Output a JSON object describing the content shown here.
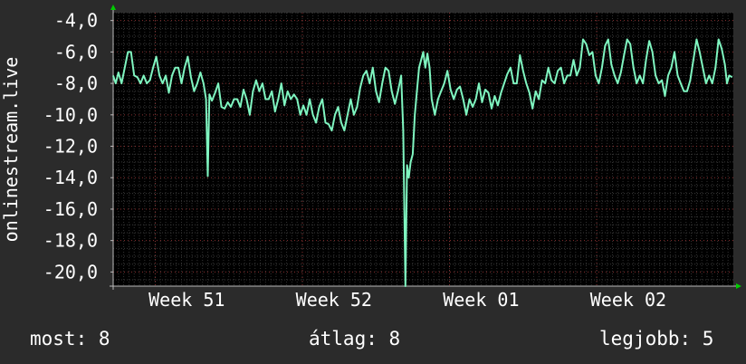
{
  "chart_data": {
    "type": "line",
    "ylabel": "onlinestream.live",
    "ylim": [
      -20.9,
      -3.5
    ],
    "yticks": [
      -4.0,
      -6.0,
      -8.0,
      -10.0,
      -12.0,
      -14.0,
      -16.0,
      -18.0,
      -20.0
    ],
    "ytick_labels": [
      "-4,0",
      "-6,0",
      "-8,0",
      "-10,0",
      "-12,0",
      "-14,0",
      "-16,0",
      "-18,0",
      "-20,0"
    ],
    "xlim": [
      0,
      29.5
    ],
    "xtick_labels": [
      {
        "label": "Week 51",
        "day": 3.5
      },
      {
        "label": "Week 52",
        "day": 10.5
      },
      {
        "label": "Week 01",
        "day": 17.5
      },
      {
        "label": "Week 02",
        "day": 24.5
      }
    ],
    "grid": true,
    "series": [
      {
        "color": "#7ff5c0",
        "points": [
          [
            0.0,
            -7.5
          ],
          [
            0.12,
            -8.0
          ],
          [
            0.25,
            -7.3
          ],
          [
            0.4,
            -8.0
          ],
          [
            0.55,
            -7.0
          ],
          [
            0.7,
            -6.0
          ],
          [
            0.85,
            -6.0
          ],
          [
            1.0,
            -7.5
          ],
          [
            1.15,
            -7.6
          ],
          [
            1.3,
            -8.0
          ],
          [
            1.45,
            -7.5
          ],
          [
            1.6,
            -8.0
          ],
          [
            1.75,
            -7.8
          ],
          [
            1.9,
            -7.0
          ],
          [
            2.05,
            -6.3
          ],
          [
            2.2,
            -7.5
          ],
          [
            2.35,
            -8.0
          ],
          [
            2.5,
            -7.5
          ],
          [
            2.65,
            -8.6
          ],
          [
            2.8,
            -7.5
          ],
          [
            2.95,
            -7.0
          ],
          [
            3.1,
            -7.0
          ],
          [
            3.25,
            -8.0
          ],
          [
            3.4,
            -7.0
          ],
          [
            3.55,
            -6.3
          ],
          [
            3.7,
            -7.6
          ],
          [
            3.85,
            -8.5
          ],
          [
            4.0,
            -8.0
          ],
          [
            4.15,
            -7.3
          ],
          [
            4.3,
            -8.0
          ],
          [
            4.42,
            -9.0
          ],
          [
            4.5,
            -13.9
          ],
          [
            4.58,
            -8.7
          ],
          [
            4.7,
            -9.1
          ],
          [
            4.85,
            -8.6
          ],
          [
            5.0,
            -8.0
          ],
          [
            5.15,
            -9.5
          ],
          [
            5.3,
            -9.6
          ],
          [
            5.45,
            -9.2
          ],
          [
            5.6,
            -9.5
          ],
          [
            5.75,
            -9.0
          ],
          [
            5.9,
            -9.0
          ],
          [
            6.05,
            -9.5
          ],
          [
            6.2,
            -8.4
          ],
          [
            6.35,
            -9.0
          ],
          [
            6.5,
            -10.0
          ],
          [
            6.65,
            -8.5
          ],
          [
            6.8,
            -7.8
          ],
          [
            6.95,
            -8.5
          ],
          [
            7.1,
            -8.0
          ],
          [
            7.25,
            -9.0
          ],
          [
            7.4,
            -9.0
          ],
          [
            7.55,
            -8.5
          ],
          [
            7.7,
            -9.8
          ],
          [
            7.85,
            -9.0
          ],
          [
            8.0,
            -8.0
          ],
          [
            8.15,
            -9.4
          ],
          [
            8.3,
            -8.5
          ],
          [
            8.45,
            -9.0
          ],
          [
            8.6,
            -8.7
          ],
          [
            8.75,
            -9.0
          ],
          [
            8.9,
            -10.0
          ],
          [
            9.05,
            -9.4
          ],
          [
            9.2,
            -10.0
          ],
          [
            9.35,
            -9.0
          ],
          [
            9.5,
            -10.0
          ],
          [
            9.65,
            -10.5
          ],
          [
            9.8,
            -9.5
          ],
          [
            9.95,
            -9.0
          ],
          [
            10.1,
            -10.5
          ],
          [
            10.25,
            -10.6
          ],
          [
            10.4,
            -11.0
          ],
          [
            10.55,
            -10.0
          ],
          [
            10.7,
            -9.5
          ],
          [
            10.85,
            -10.5
          ],
          [
            11.0,
            -11.0
          ],
          [
            11.15,
            -10.0
          ],
          [
            11.3,
            -9.0
          ],
          [
            11.45,
            -10.0
          ],
          [
            11.6,
            -9.5
          ],
          [
            11.75,
            -8.3
          ],
          [
            11.9,
            -7.5
          ],
          [
            12.05,
            -7.2
          ],
          [
            12.2,
            -8.0
          ],
          [
            12.35,
            -7.0
          ],
          [
            12.5,
            -8.5
          ],
          [
            12.65,
            -9.2
          ],
          [
            12.8,
            -8.0
          ],
          [
            12.95,
            -7.0
          ],
          [
            13.1,
            -7.2
          ],
          [
            13.25,
            -8.5
          ],
          [
            13.4,
            -9.3
          ],
          [
            13.55,
            -8.5
          ],
          [
            13.7,
            -7.5
          ],
          [
            13.8,
            -11.0
          ],
          [
            13.9,
            -21.0
          ],
          [
            13.98,
            -13.2
          ],
          [
            14.06,
            -14.0
          ],
          [
            14.15,
            -13.0
          ],
          [
            14.25,
            -12.5
          ],
          [
            14.35,
            -10.0
          ],
          [
            14.45,
            -8.5
          ],
          [
            14.55,
            -7.0
          ],
          [
            14.65,
            -6.5
          ],
          [
            14.75,
            -6.0
          ],
          [
            14.85,
            -7.0
          ],
          [
            14.95,
            -6.1
          ],
          [
            15.05,
            -7.0
          ],
          [
            15.15,
            -9.0
          ],
          [
            15.3,
            -10.0
          ],
          [
            15.45,
            -9.0
          ],
          [
            15.6,
            -8.5
          ],
          [
            15.75,
            -8.0
          ],
          [
            15.9,
            -7.2
          ],
          [
            16.05,
            -8.4
          ],
          [
            16.2,
            -9.0
          ],
          [
            16.35,
            -8.4
          ],
          [
            16.5,
            -8.2
          ],
          [
            16.65,
            -9.0
          ],
          [
            16.8,
            -10.0
          ],
          [
            16.95,
            -9.0
          ],
          [
            17.1,
            -9.5
          ],
          [
            17.25,
            -9.0
          ],
          [
            17.4,
            -8.0
          ],
          [
            17.55,
            -9.2
          ],
          [
            17.7,
            -8.4
          ],
          [
            17.85,
            -8.6
          ],
          [
            18.0,
            -9.6
          ],
          [
            18.15,
            -8.8
          ],
          [
            18.3,
            -9.4
          ],
          [
            18.45,
            -8.6
          ],
          [
            18.6,
            -8.0
          ],
          [
            18.75,
            -7.4
          ],
          [
            18.9,
            -7.0
          ],
          [
            19.05,
            -8.0
          ],
          [
            19.2,
            -8.0
          ],
          [
            19.35,
            -6.2
          ],
          [
            19.5,
            -7.2
          ],
          [
            19.65,
            -8.0
          ],
          [
            19.8,
            -8.6
          ],
          [
            19.95,
            -9.6
          ],
          [
            20.1,
            -8.5
          ],
          [
            20.25,
            -9.0
          ],
          [
            20.4,
            -7.8
          ],
          [
            20.55,
            -8.0
          ],
          [
            20.7,
            -7.0
          ],
          [
            20.85,
            -7.8
          ],
          [
            21.0,
            -8.0
          ],
          [
            21.15,
            -7.2
          ],
          [
            21.3,
            -7.0
          ],
          [
            21.45,
            -8.0
          ],
          [
            21.6,
            -7.5
          ],
          [
            21.75,
            -7.5
          ],
          [
            21.9,
            -6.5
          ],
          [
            22.05,
            -7.5
          ],
          [
            22.2,
            -7.0
          ],
          [
            22.35,
            -5.2
          ],
          [
            22.5,
            -5.5
          ],
          [
            22.65,
            -6.2
          ],
          [
            22.8,
            -6.0
          ],
          [
            22.95,
            -7.5
          ],
          [
            23.1,
            -8.0
          ],
          [
            23.25,
            -7.0
          ],
          [
            23.4,
            -5.6
          ],
          [
            23.55,
            -5.2
          ],
          [
            23.7,
            -6.8
          ],
          [
            23.85,
            -7.5
          ],
          [
            24.0,
            -8.0
          ],
          [
            24.15,
            -7.3
          ],
          [
            24.3,
            -6.2
          ],
          [
            24.45,
            -5.2
          ],
          [
            24.6,
            -5.5
          ],
          [
            24.75,
            -7.0
          ],
          [
            24.9,
            -8.0
          ],
          [
            25.05,
            -7.5
          ],
          [
            25.2,
            -8.0
          ],
          [
            25.35,
            -6.5
          ],
          [
            25.5,
            -5.3
          ],
          [
            25.65,
            -6.0
          ],
          [
            25.8,
            -7.5
          ],
          [
            25.95,
            -8.0
          ],
          [
            26.1,
            -7.8
          ],
          [
            26.25,
            -8.8
          ],
          [
            26.4,
            -7.5
          ],
          [
            26.55,
            -7.0
          ],
          [
            26.7,
            -6.0
          ],
          [
            26.85,
            -7.5
          ],
          [
            27.0,
            -8.0
          ],
          [
            27.15,
            -8.5
          ],
          [
            27.3,
            -8.5
          ],
          [
            27.45,
            -7.8
          ],
          [
            27.6,
            -6.5
          ],
          [
            27.75,
            -5.2
          ],
          [
            27.9,
            -6.0
          ],
          [
            28.05,
            -7.0
          ],
          [
            28.2,
            -8.0
          ],
          [
            28.35,
            -7.5
          ],
          [
            28.5,
            -8.0
          ],
          [
            28.65,
            -7.0
          ],
          [
            28.8,
            -5.2
          ],
          [
            28.95,
            -5.8
          ],
          [
            29.1,
            -6.8
          ],
          [
            29.2,
            -8.0
          ],
          [
            29.3,
            -7.5
          ],
          [
            29.45,
            -7.6
          ]
        ]
      }
    ]
  },
  "stats": {
    "current": "most: 8",
    "average": "átlag: 8",
    "best": "legjobb: 5"
  }
}
